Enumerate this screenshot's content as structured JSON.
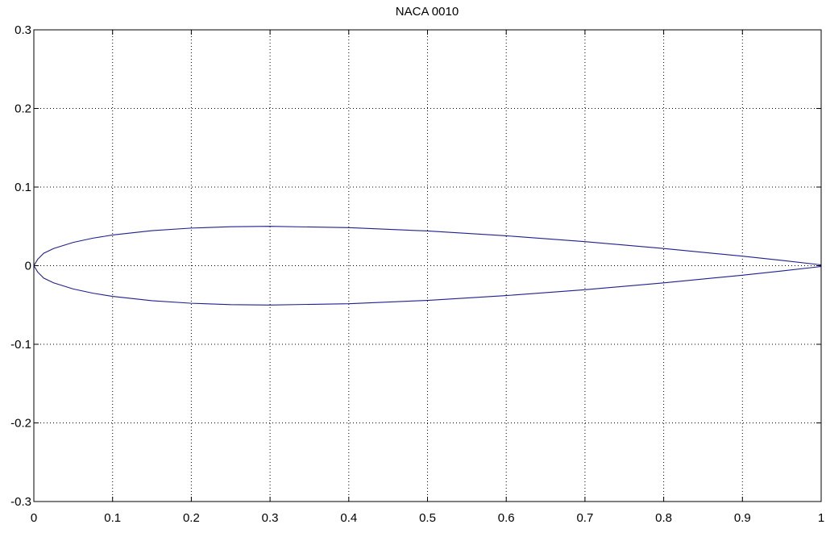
{
  "chart_data": {
    "type": "line",
    "title": "NACA 0010",
    "xlabel": "",
    "ylabel": "",
    "xlim": [
      0,
      1
    ],
    "ylim": [
      -0.3,
      0.3
    ],
    "x_ticks": [
      0,
      0.1,
      0.2,
      0.3,
      0.4,
      0.5,
      0.6,
      0.7,
      0.8,
      0.9,
      1
    ],
    "x_tick_labels": [
      "0",
      "0.1",
      "0.2",
      "0.3",
      "0.4",
      "0.5",
      "0.6",
      "0.7",
      "0.8",
      "0.9",
      "1"
    ],
    "y_ticks": [
      -0.3,
      -0.2,
      -0.1,
      0,
      0.1,
      0.2,
      0.3
    ],
    "y_tick_labels": [
      "-0.3",
      "-0.2",
      "-0.1",
      "0",
      "0.1",
      "0.2",
      "0.3"
    ],
    "grid": true,
    "grid_style": "dotted",
    "line_color": "#1f1f8f",
    "series": [
      {
        "x": [
          0,
          0.005,
          0.0125,
          0.025,
          0.05,
          0.075,
          0.1,
          0.15,
          0.2,
          0.25,
          0.3,
          0.4,
          0.5,
          0.6,
          0.7,
          0.8,
          0.9,
          0.95,
          1.0
        ],
        "y": [
          0,
          0.00829,
          0.01578,
          0.02178,
          0.02962,
          0.035,
          0.03902,
          0.04455,
          0.04782,
          0.04952,
          0.05002,
          0.04837,
          0.04412,
          0.03803,
          0.03053,
          0.02187,
          0.01207,
          0.00672,
          0.00105
        ]
      },
      {
        "x": [
          0,
          0.005,
          0.0125,
          0.025,
          0.05,
          0.075,
          0.1,
          0.15,
          0.2,
          0.25,
          0.3,
          0.4,
          0.5,
          0.6,
          0.7,
          0.8,
          0.9,
          0.95,
          1.0
        ],
        "y": [
          0,
          -0.00829,
          -0.01578,
          -0.02178,
          -0.02962,
          -0.035,
          -0.03902,
          -0.04455,
          -0.04782,
          -0.04952,
          -0.05002,
          -0.04837,
          -0.04412,
          -0.03803,
          -0.03053,
          -0.02187,
          -0.01207,
          -0.00672,
          -0.00105
        ]
      }
    ]
  }
}
